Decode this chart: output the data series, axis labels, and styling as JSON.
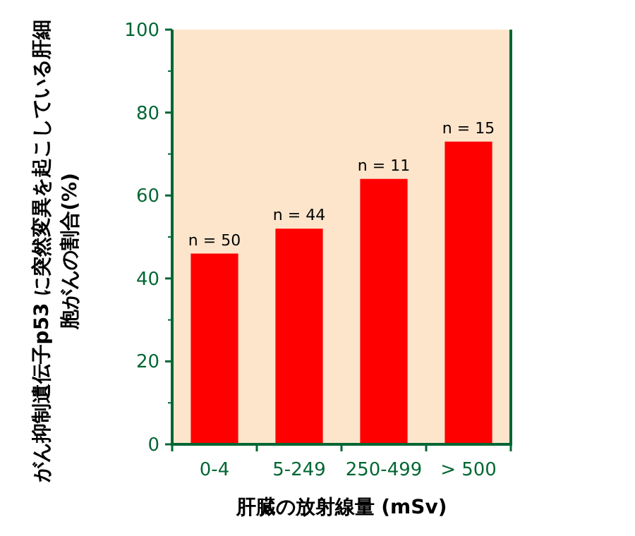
{
  "chart_data": {
    "type": "bar",
    "xlabel": "肝臓の放射線量 (mSv)",
    "ylabel": "がん抑制遺伝子p53 に突然変異を起こしている肝細胞がんの割合(%)",
    "categories": [
      "0-4",
      "5-249",
      "250-499",
      "> 500"
    ],
    "values": [
      46,
      52,
      64,
      73
    ],
    "color": "#ff0000",
    "ylim": [
      0,
      100
    ],
    "yticks": [
      0,
      20,
      40,
      60,
      80,
      100
    ],
    "grid": false,
    "annotations": [
      {
        "text": "n = 50",
        "x": "0-4",
        "y": 46
      },
      {
        "text": "n = 44",
        "x": "5-249",
        "y": 52
      },
      {
        "text": "n = 11",
        "x": "250-499",
        "y": 64
      },
      {
        "text": "n = 15",
        "x": "> 500",
        "y": 73
      }
    ]
  }
}
